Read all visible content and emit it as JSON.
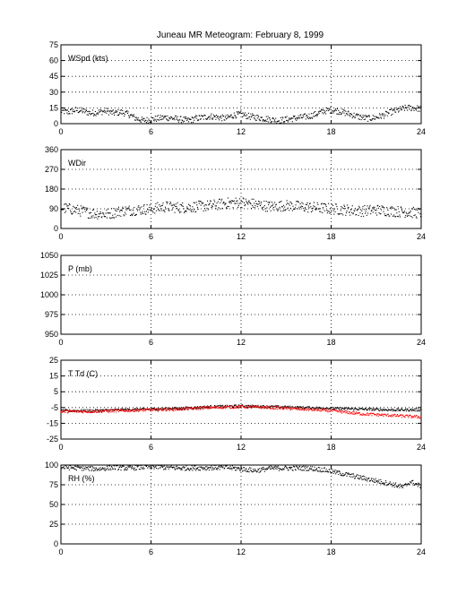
{
  "figure": {
    "title": "Juneau MR Meteogram:  February  8, 1999"
  },
  "chart_data": [
    {
      "type": "scatter",
      "id": "wspd",
      "label": "WSpd (kts)",
      "xlim": [
        0,
        24
      ],
      "xticks": [
        0,
        6,
        12,
        18,
        24
      ],
      "ylim": [
        0,
        75
      ],
      "yticks": [
        0,
        15,
        30,
        45,
        60,
        75
      ],
      "grid": true,
      "series": [
        {
          "color": "#000000",
          "points": [
            [
              0,
              12
            ],
            [
              0.5,
              11
            ],
            [
              1,
              13
            ],
            [
              1.5,
              12
            ],
            [
              2,
              10
            ],
            [
              2.5,
              11
            ],
            [
              3,
              12
            ],
            [
              3.5,
              10
            ],
            [
              4,
              11
            ],
            [
              4.5,
              9
            ],
            [
              5,
              5
            ],
            [
              5.5,
              3
            ],
            [
              6,
              4
            ],
            [
              6.5,
              5
            ],
            [
              7,
              6
            ],
            [
              7.5,
              5
            ],
            [
              8,
              4
            ],
            [
              8.5,
              3
            ],
            [
              9,
              5
            ],
            [
              9.5,
              6
            ],
            [
              10,
              7
            ],
            [
              10.5,
              6
            ],
            [
              11,
              5
            ],
            [
              11.5,
              8
            ],
            [
              12,
              9
            ],
            [
              12.5,
              7
            ],
            [
              13,
              6
            ],
            [
              13.5,
              5
            ],
            [
              14,
              4
            ],
            [
              14.5,
              3
            ],
            [
              15,
              4
            ],
            [
              15.5,
              5
            ],
            [
              16,
              6
            ],
            [
              16.5,
              7
            ],
            [
              17,
              9
            ],
            [
              17.5,
              12
            ],
            [
              18,
              13
            ],
            [
              18.5,
              12
            ],
            [
              19,
              10
            ],
            [
              19.5,
              8
            ],
            [
              20,
              6
            ],
            [
              20.5,
              5
            ],
            [
              21,
              6
            ],
            [
              21.5,
              8
            ],
            [
              22,
              11
            ],
            [
              22.5,
              13
            ],
            [
              23,
              15
            ],
            [
              23.5,
              15
            ],
            [
              24,
              14
            ]
          ],
          "spread": 3
        }
      ]
    },
    {
      "type": "scatter",
      "id": "wdir",
      "label": "WDir",
      "xlim": [
        0,
        24
      ],
      "xticks": [
        0,
        6,
        12,
        18,
        24
      ],
      "ylim": [
        0,
        360
      ],
      "yticks": [
        0,
        90,
        180,
        270,
        360
      ],
      "grid": true,
      "series": [
        {
          "color": "#000000",
          "points": [
            [
              0,
              95
            ],
            [
              1,
              85
            ],
            [
              2,
              70
            ],
            [
              3,
              65
            ],
            [
              4,
              80
            ],
            [
              5,
              85
            ],
            [
              6,
              90
            ],
            [
              7,
              100
            ],
            [
              8,
              95
            ],
            [
              9,
              100
            ],
            [
              10,
              105
            ],
            [
              11,
              115
            ],
            [
              12,
              120
            ],
            [
              13,
              110
            ],
            [
              14,
              100
            ],
            [
              15,
              105
            ],
            [
              16,
              100
            ],
            [
              17,
              95
            ],
            [
              18,
              90
            ],
            [
              19,
              85
            ],
            [
              20,
              80
            ],
            [
              21,
              85
            ],
            [
              22,
              80
            ],
            [
              23,
              75
            ],
            [
              24,
              70
            ]
          ],
          "spread": 25
        }
      ]
    },
    {
      "type": "scatter",
      "id": "pres",
      "label": "P (mb)",
      "xlim": [
        0,
        24
      ],
      "xticks": [
        0,
        6,
        12,
        18,
        24
      ],
      "ylim": [
        950,
        1050
      ],
      "yticks": [
        950,
        975,
        1000,
        1025,
        1050
      ],
      "grid": true,
      "series": []
    },
    {
      "type": "scatter",
      "id": "ttd",
      "label": "T Td (C)",
      "xlim": [
        0,
        24
      ],
      "xticks": [
        0,
        6,
        12,
        18,
        24
      ],
      "ylim": [
        -25,
        25
      ],
      "yticks": [
        -25,
        -15,
        -5,
        5,
        15,
        25
      ],
      "grid": true,
      "series": [
        {
          "color": "#000000",
          "points": [
            [
              0,
              -7
            ],
            [
              2,
              -7
            ],
            [
              4,
              -6.5
            ],
            [
              6,
              -6
            ],
            [
              8,
              -5.5
            ],
            [
              10,
              -4.5
            ],
            [
              12,
              -4
            ],
            [
              14,
              -4.5
            ],
            [
              16,
              -5
            ],
            [
              18,
              -5.5
            ],
            [
              20,
              -6
            ],
            [
              22,
              -6.5
            ],
            [
              24,
              -6.5
            ]
          ],
          "spread": 0.8
        },
        {
          "color": "#ff0000",
          "points": [
            [
              0,
              -7.5
            ],
            [
              2,
              -7.5
            ],
            [
              4,
              -7
            ],
            [
              6,
              -6.5
            ],
            [
              8,
              -6
            ],
            [
              10,
              -5
            ],
            [
              12,
              -4.5
            ],
            [
              14,
              -5
            ],
            [
              16,
              -6
            ],
            [
              18,
              -7
            ],
            [
              20,
              -9
            ],
            [
              22,
              -10
            ],
            [
              24,
              -11
            ]
          ],
          "spread": 0.9
        }
      ]
    },
    {
      "type": "scatter",
      "id": "rh",
      "label": "RH (%)",
      "xlim": [
        0,
        24
      ],
      "xticks": [
        0,
        6,
        12,
        18,
        24
      ],
      "ylim": [
        0,
        100
      ],
      "yticks": [
        0,
        25,
        50,
        75,
        100
      ],
      "grid": true,
      "series": [
        {
          "color": "#000000",
          "points": [
            [
              0.5,
              97
            ],
            [
              1.5,
              96
            ],
            [
              2.5,
              95
            ],
            [
              3.5,
              97
            ],
            [
              4.5,
              96
            ],
            [
              6,
              98
            ],
            [
              7,
              97
            ],
            [
              8,
              96
            ],
            [
              11,
              97
            ],
            [
              12,
              95
            ],
            [
              13,
              93
            ],
            [
              14,
              96
            ],
            [
              16.5,
              96
            ],
            [
              17.5,
              94
            ],
            [
              18,
              92
            ],
            [
              19,
              88
            ],
            [
              20,
              84
            ],
            [
              21,
              80
            ],
            [
              22,
              76
            ],
            [
              22.8,
              72
            ],
            [
              23.3,
              79
            ],
            [
              24,
              73
            ]
          ],
          "spread": 3
        }
      ]
    }
  ]
}
